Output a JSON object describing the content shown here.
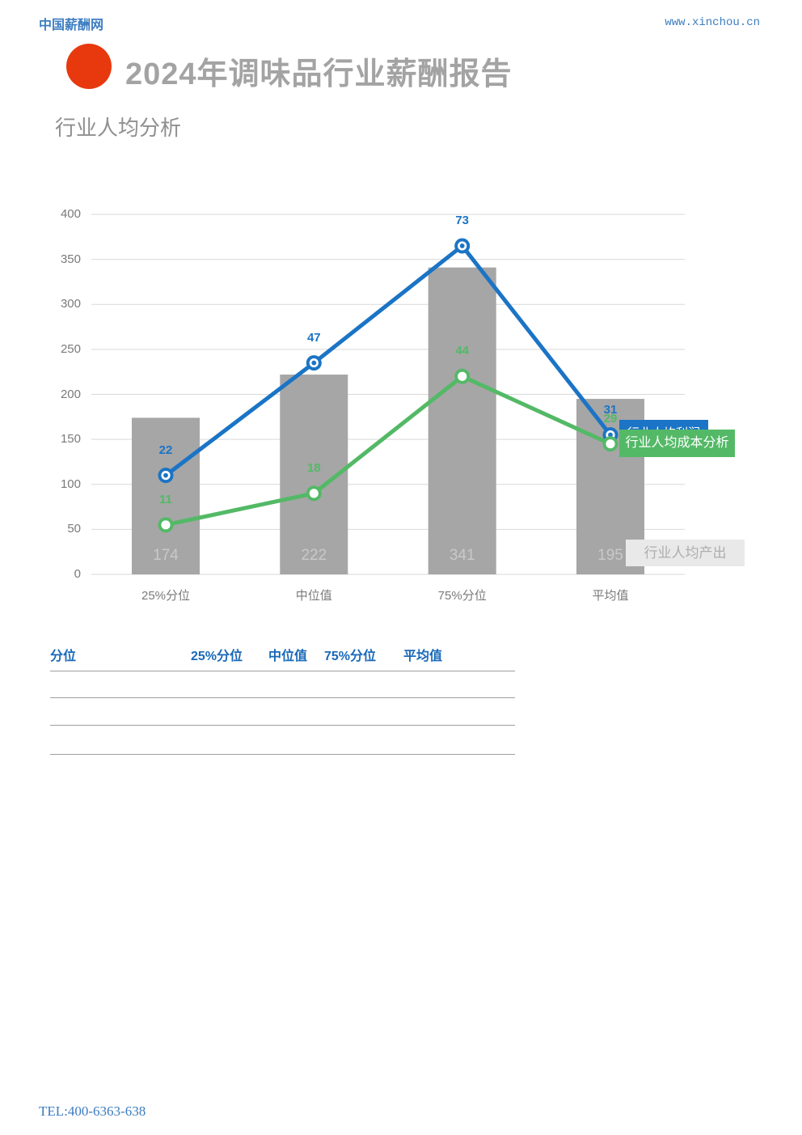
{
  "header": {
    "logo_text": "中国薪酬网",
    "site_url": "www.xinchou.cn",
    "title": "2024年调味品行业薪酬报告",
    "subtitle": "行业人均分析"
  },
  "chart_data": {
    "type": "combo-bar-line",
    "title": "行业人均分析",
    "categories": [
      "25%分位",
      "中位值",
      "75%分位",
      "平均值"
    ],
    "series": [
      {
        "name": "行业人均产出",
        "type": "bar",
        "axis": "primary",
        "color": "#a6a6a6",
        "values": [
          174,
          222,
          341,
          195
        ]
      },
      {
        "name": "行业人均利润",
        "type": "line",
        "axis": "secondary",
        "color": "#1b74c5",
        "values": [
          22,
          47,
          73,
          31
        ]
      },
      {
        "name": "行业人均成本分析",
        "type": "line",
        "axis": "secondary",
        "color": "#53b966",
        "values": [
          11,
          18,
          44,
          29
        ]
      }
    ],
    "primary_axis": {
      "min": 0,
      "max": 400,
      "step": 50
    },
    "secondary_axis": {
      "min": 0,
      "max": 80,
      "visible": false
    },
    "grid": true,
    "legend_labels": {
      "blue": "行业人均利润",
      "green": "行业人均成本分析",
      "gray": "行业人均产出"
    }
  },
  "table": {
    "headers": [
      "分位",
      "25%分位",
      "中位值",
      "75%分位",
      "平均值"
    ],
    "rows": [
      [
        "",
        "",
        "",
        "",
        ""
      ],
      [
        "",
        "",
        "",
        "",
        ""
      ],
      [
        "",
        "",
        "",
        "",
        ""
      ]
    ]
  },
  "footer": {
    "tel": "TEL:400-6363-638"
  },
  "colors": {
    "accent_blue": "#1b74c5",
    "accent_green": "#53b966",
    "bar_gray": "#a6a6a6",
    "grid_gray": "#d9d9d9",
    "brand_red": "#e8390e",
    "link_blue": "#3d7ec2",
    "table_header_blue": "#1969b9"
  }
}
